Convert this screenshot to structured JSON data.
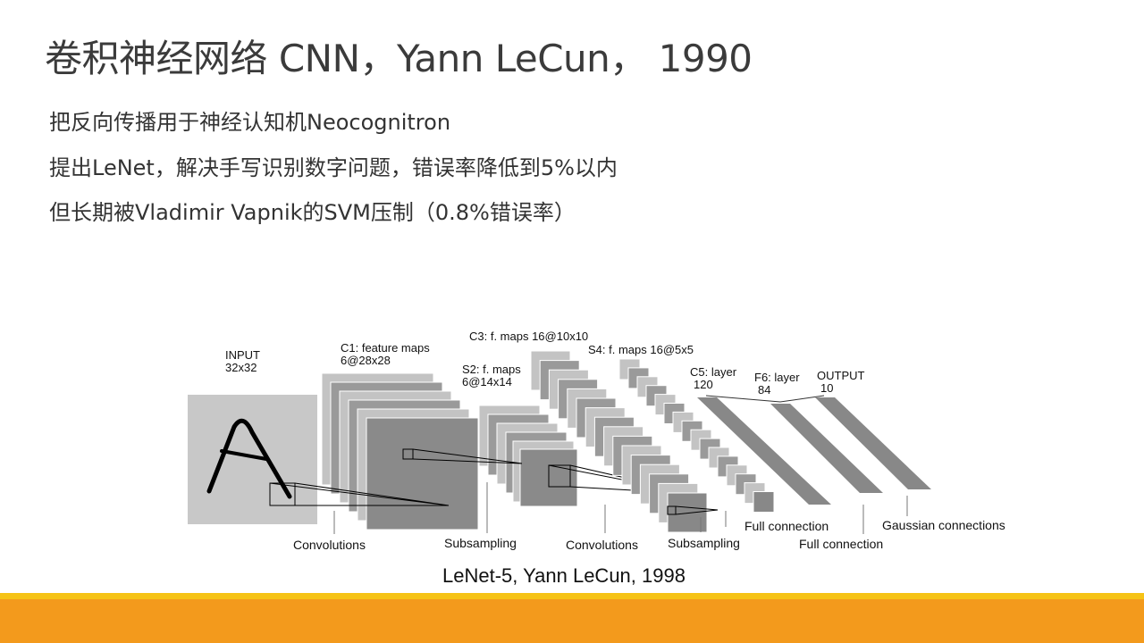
{
  "title": "卷积神经网络 CNN，Yann LeCun， 1990",
  "bullets": [
    "把反向传播用于神经认知机Neocognitron",
    "提出LeNet，解决手写识别数字问题，错误率降低到5%以内",
    "但长期被Vladimir Vapnik的SVM压制（0.8%错误率）"
  ],
  "diagram": {
    "layers": [
      {
        "name": "INPUT",
        "size": "32x32"
      },
      {
        "name": "C1: feature maps",
        "size": "6@28x28"
      },
      {
        "name": "S2: f. maps",
        "size": "6@14x14"
      },
      {
        "name": "C3: f. maps 16@10x10",
        "size": ""
      },
      {
        "name": "S4: f. maps 16@5x5",
        "size": ""
      },
      {
        "name": "C5: layer",
        "size": "120"
      },
      {
        "name": "F6: layer",
        "size": "84"
      },
      {
        "name": "OUTPUT",
        "size": "10"
      }
    ],
    "operations": [
      "Convolutions",
      "Subsampling",
      "Convolutions",
      "Subsampling",
      "Full connection",
      "Full connection",
      "Gaussian connections"
    ]
  },
  "caption": "LeNet-5, Yann LeCun, 1998",
  "colors": {
    "footer": "#f39a1c",
    "footer_stripe": "#f6c316",
    "map_gray": "#888888",
    "map_light": "#c6c6c6"
  }
}
